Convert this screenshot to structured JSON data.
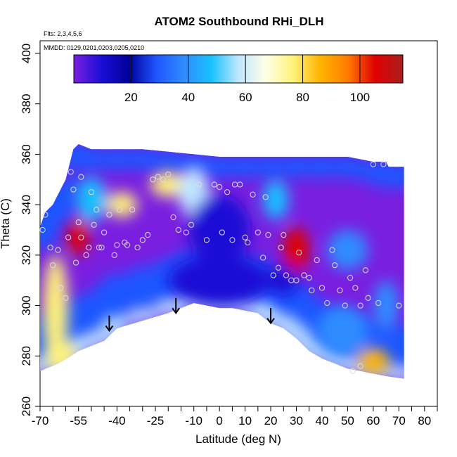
{
  "chart_data": {
    "type": "heatmap",
    "title": "ATOM2 Southbound RHi_DLH",
    "subtitle_flights": "Flts: 2,3,4,5,6",
    "subtitle_dates": "MMDD: 0129,0201,0203,0205,0210",
    "xlabel": "Latitude (deg N)",
    "ylabel": "Theta (C)",
    "xlim": [
      -70,
      85
    ],
    "ylim": [
      260,
      405
    ],
    "x_ticks": [
      -70,
      -65,
      -60,
      -55,
      -50,
      -45,
      -40,
      -35,
      -30,
      -25,
      -20,
      -15,
      -10,
      -5,
      0,
      5,
      10,
      15,
      20,
      25,
      30,
      35,
      40,
      45,
      50,
      55,
      60,
      65,
      70,
      75,
      80,
      85
    ],
    "x_tick_labels": [
      {
        "value": -70,
        "label": "-70"
      },
      {
        "value": -55,
        "label": "-55"
      },
      {
        "value": -40,
        "label": "-40"
      },
      {
        "value": -25,
        "label": "-25"
      },
      {
        "value": -10,
        "label": "-10"
      },
      {
        "value": 0,
        "label": "0"
      },
      {
        "value": 10,
        "label": "10"
      },
      {
        "value": 20,
        "label": "20"
      },
      {
        "value": 30,
        "label": "30"
      },
      {
        "value": 40,
        "label": "40"
      },
      {
        "value": 50,
        "label": "50"
      },
      {
        "value": 60,
        "label": "60"
      },
      {
        "value": 70,
        "label": "70"
      },
      {
        "value": 80,
        "label": "80"
      }
    ],
    "y_ticks": [
      260,
      280,
      300,
      320,
      340,
      360,
      380,
      400
    ],
    "colorbar": {
      "range": [
        0,
        115
      ],
      "ticks": [
        20,
        40,
        60,
        80,
        100
      ],
      "colors": [
        "#7a1fe0",
        "#1a0fd6",
        "#00009a",
        "#1f55ff",
        "#2f8cff",
        "#18c0ff",
        "#bfe6ff",
        "#ffffe6",
        "#fff27a",
        "#ffb400",
        "#ff7a00",
        "#e00000",
        "#a82020"
      ]
    },
    "field": {
      "column_top_theta": [
        {
          "lat": -70,
          "theta": 331
        },
        {
          "lat": -68,
          "theta": 337
        },
        {
          "lat": -65,
          "theta": 340
        },
        {
          "lat": -63,
          "theta": 344
        },
        {
          "lat": -60,
          "theta": 350
        },
        {
          "lat": -57,
          "theta": 362
        },
        {
          "lat": -55,
          "theta": 364
        },
        {
          "lat": -50,
          "theta": 362
        },
        {
          "lat": -40,
          "theta": 362
        },
        {
          "lat": -30,
          "theta": 362
        },
        {
          "lat": -20,
          "theta": 361
        },
        {
          "lat": -10,
          "theta": 360
        },
        {
          "lat": 0,
          "theta": 359
        },
        {
          "lat": 10,
          "theta": 359
        },
        {
          "lat": 20,
          "theta": 359
        },
        {
          "lat": 30,
          "theta": 359
        },
        {
          "lat": 40,
          "theta": 359
        },
        {
          "lat": 50,
          "theta": 359
        },
        {
          "lat": 60,
          "theta": 357
        },
        {
          "lat": 65,
          "theta": 357
        },
        {
          "lat": 66,
          "theta": 355
        },
        {
          "lat": 72,
          "theta": 355
        }
      ],
      "column_bottom_theta": [
        {
          "lat": -70,
          "theta": 274
        },
        {
          "lat": -63,
          "theta": 277
        },
        {
          "lat": -58,
          "theta": 280
        },
        {
          "lat": -55,
          "theta": 282
        },
        {
          "lat": -50,
          "theta": 284
        },
        {
          "lat": -45,
          "theta": 286
        },
        {
          "lat": -40,
          "theta": 291
        },
        {
          "lat": -30,
          "theta": 294
        },
        {
          "lat": -20,
          "theta": 297
        },
        {
          "lat": -15,
          "theta": 299
        },
        {
          "lat": -10,
          "theta": 301
        },
        {
          "lat": -5,
          "theta": 300
        },
        {
          "lat": 0,
          "theta": 299
        },
        {
          "lat": 5,
          "theta": 299
        },
        {
          "lat": 10,
          "theta": 298
        },
        {
          "lat": 15,
          "theta": 297
        },
        {
          "lat": 20,
          "theta": 293
        },
        {
          "lat": 25,
          "theta": 291
        },
        {
          "lat": 30,
          "theta": 287
        },
        {
          "lat": 35,
          "theta": 282
        },
        {
          "lat": 40,
          "theta": 279
        },
        {
          "lat": 45,
          "theta": 277
        },
        {
          "lat": 50,
          "theta": 275
        },
        {
          "lat": 55,
          "theta": 274
        },
        {
          "lat": 60,
          "theta": 273
        },
        {
          "lat": 65,
          "theta": 272
        },
        {
          "lat": 72,
          "theta": 271
        }
      ],
      "blobs": [
        {
          "lat": -64,
          "theta": 298,
          "rx": 5,
          "ry": 22,
          "value": 80
        },
        {
          "lat": -62,
          "theta": 280,
          "rx": 6,
          "ry": 6,
          "value": 75
        },
        {
          "lat": -55,
          "theta": 327,
          "rx": 4,
          "ry": 7,
          "value": 105
        },
        {
          "lat": -50,
          "theta": 342,
          "rx": 6,
          "ry": 9,
          "value": 50
        },
        {
          "lat": -38,
          "theta": 340,
          "rx": 6,
          "ry": 5,
          "value": 75
        },
        {
          "lat": -20,
          "theta": 348,
          "rx": 7,
          "ry": 5,
          "value": 80
        },
        {
          "lat": -10,
          "theta": 345,
          "rx": 6,
          "ry": 10,
          "value": 55
        },
        {
          "lat": 30,
          "theta": 322,
          "rx": 5,
          "ry": 9,
          "value": 105
        },
        {
          "lat": 22,
          "theta": 342,
          "rx": 5,
          "ry": 8,
          "value": 45
        },
        {
          "lat": 50,
          "theta": 322,
          "rx": 8,
          "ry": 8,
          "value": 35
        },
        {
          "lat": 48,
          "theta": 290,
          "rx": 10,
          "ry": 10,
          "value": 40
        },
        {
          "lat": 60,
          "theta": 278,
          "rx": 6,
          "ry": 5,
          "value": 85
        },
        {
          "lat": 65,
          "theta": 300,
          "rx": 5,
          "ry": 10,
          "value": 35
        },
        {
          "lat": 0,
          "theta": 310,
          "rx": 20,
          "ry": 10,
          "value": 8
        },
        {
          "lat": 0,
          "theta": 330,
          "rx": 12,
          "ry": 14,
          "value": 5
        },
        {
          "lat": 25,
          "theta": 310,
          "rx": 6,
          "ry": 6,
          "value": 8
        }
      ]
    },
    "observations": [
      {
        "lat": -69,
        "theta": 330
      },
      {
        "lat": -68,
        "theta": 336
      },
      {
        "lat": -66,
        "theta": 323
      },
      {
        "lat": -65,
        "theta": 316
      },
      {
        "lat": -63,
        "theta": 322
      },
      {
        "lat": -62,
        "theta": 307
      },
      {
        "lat": -60,
        "theta": 303
      },
      {
        "lat": -59,
        "theta": 327
      },
      {
        "lat": -58,
        "theta": 353
      },
      {
        "lat": -57,
        "theta": 346
      },
      {
        "lat": -56,
        "theta": 317
      },
      {
        "lat": -55,
        "theta": 333
      },
      {
        "lat": -54,
        "theta": 351
      },
      {
        "lat": -54,
        "theta": 327
      },
      {
        "lat": -52,
        "theta": 320
      },
      {
        "lat": -51,
        "theta": 323
      },
      {
        "lat": -50,
        "theta": 345
      },
      {
        "lat": -49,
        "theta": 332
      },
      {
        "lat": -48,
        "theta": 338
      },
      {
        "lat": -47,
        "theta": 323
      },
      {
        "lat": -46,
        "theta": 323
      },
      {
        "lat": -45,
        "theta": 329
      },
      {
        "lat": -43,
        "theta": 336
      },
      {
        "lat": -41,
        "theta": 320
      },
      {
        "lat": -40,
        "theta": 324
      },
      {
        "lat": -39,
        "theta": 338
      },
      {
        "lat": -37,
        "theta": 325
      },
      {
        "lat": -36,
        "theta": 324
      },
      {
        "lat": -34,
        "theta": 338
      },
      {
        "lat": -32,
        "theta": 323
      },
      {
        "lat": -30,
        "theta": 326
      },
      {
        "lat": -28,
        "theta": 328
      },
      {
        "lat": -26,
        "theta": 350
      },
      {
        "lat": -24,
        "theta": 351
      },
      {
        "lat": -22,
        "theta": 350
      },
      {
        "lat": -20,
        "theta": 352
      },
      {
        "lat": -18,
        "theta": 335
      },
      {
        "lat": -16,
        "theta": 330
      },
      {
        "lat": -13,
        "theta": 329
      },
      {
        "lat": -11,
        "theta": 332
      },
      {
        "lat": -8,
        "theta": 348
      },
      {
        "lat": -5,
        "theta": 326
      },
      {
        "lat": -2,
        "theta": 348
      },
      {
        "lat": 0,
        "theta": 347
      },
      {
        "lat": 1,
        "theta": 329
      },
      {
        "lat": 3,
        "theta": 345
      },
      {
        "lat": 5,
        "theta": 326
      },
      {
        "lat": 6,
        "theta": 348
      },
      {
        "lat": 8,
        "theta": 348
      },
      {
        "lat": 10,
        "theta": 327
      },
      {
        "lat": 11,
        "theta": 325
      },
      {
        "lat": 13,
        "theta": 344
      },
      {
        "lat": 15,
        "theta": 329
      },
      {
        "lat": 17,
        "theta": 319
      },
      {
        "lat": 18,
        "theta": 343
      },
      {
        "lat": 19,
        "theta": 328
      },
      {
        "lat": 21,
        "theta": 312
      },
      {
        "lat": 23,
        "theta": 315
      },
      {
        "lat": 24,
        "theta": 323
      },
      {
        "lat": 25,
        "theta": 328
      },
      {
        "lat": 26,
        "theta": 312
      },
      {
        "lat": 28,
        "theta": 310
      },
      {
        "lat": 30,
        "theta": 310
      },
      {
        "lat": 31,
        "theta": 321
      },
      {
        "lat": 33,
        "theta": 312
      },
      {
        "lat": 35,
        "theta": 311
      },
      {
        "lat": 36,
        "theta": 306
      },
      {
        "lat": 38,
        "theta": 318
      },
      {
        "lat": 40,
        "theta": 307
      },
      {
        "lat": 42,
        "theta": 301
      },
      {
        "lat": 44,
        "theta": 322
      },
      {
        "lat": 45,
        "theta": 316
      },
      {
        "lat": 47,
        "theta": 306
      },
      {
        "lat": 49,
        "theta": 300
      },
      {
        "lat": 51,
        "theta": 311
      },
      {
        "lat": 53,
        "theta": 307
      },
      {
        "lat": 55,
        "theta": 300
      },
      {
        "lat": 57,
        "theta": 314
      },
      {
        "lat": 58,
        "theta": 303
      },
      {
        "lat": 60,
        "theta": 356
      },
      {
        "lat": 62,
        "theta": 301
      },
      {
        "lat": 64,
        "theta": 356
      },
      {
        "lat": 70,
        "theta": 300
      },
      {
        "lat": 52,
        "theta": 274
      },
      {
        "lat": 55,
        "theta": 276
      }
    ],
    "arrows": [
      {
        "lat": -43,
        "theta_top": 296,
        "theta_tip": 290
      },
      {
        "lat": -17,
        "theta_top": 303,
        "theta_tip": 297
      },
      {
        "lat": 20,
        "theta_top": 299,
        "theta_tip": 293
      }
    ]
  }
}
